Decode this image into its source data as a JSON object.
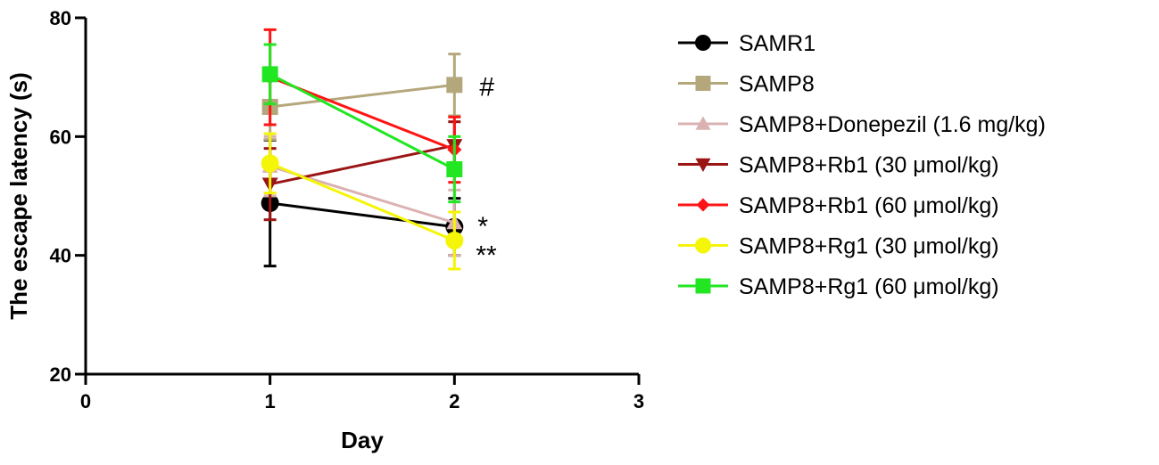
{
  "chart_data": {
    "type": "line",
    "title": "",
    "xlabel": "Day",
    "ylabel": "The escape latency (s)",
    "xlim": [
      0,
      3
    ],
    "ylim": [
      20,
      80
    ],
    "xticks": [
      "0",
      "1",
      "2",
      "3"
    ],
    "yticks": [
      "20",
      "40",
      "60",
      "80"
    ],
    "grid": false,
    "legend_position": "right",
    "series": [
      {
        "name": "SAMR1",
        "color": "#000000",
        "marker": "circle",
        "x": [
          1,
          2
        ],
        "y": [
          48.8,
          44.8
        ],
        "err": [
          10.6,
          4.8
        ]
      },
      {
        "name": "SAMP8",
        "color": "#b5a77c",
        "marker": "square",
        "x": [
          1,
          2
        ],
        "y": [
          65,
          68.7
        ],
        "err": [
          5.5,
          5.2
        ]
      },
      {
        "name": "SAMP8+Donepezil (1.6 mg/kg)",
        "color": "#dbb1b1",
        "marker": "triangle-up",
        "x": [
          1,
          2
        ],
        "y": [
          55,
          45.5
        ],
        "err": [
          5,
          5.5
        ]
      },
      {
        "name": "SAMP8+Rb1 (30 μmol/kg)",
        "color": "#9b1515",
        "marker": "triangle-down",
        "x": [
          1,
          2
        ],
        "y": [
          52,
          58.5
        ],
        "err": [
          6,
          4
        ]
      },
      {
        "name": "SAMP8+Rb1 (60 μmol/kg)",
        "color": "#ff1414",
        "marker": "diamond",
        "x": [
          1,
          2
        ],
        "y": [
          70,
          57.8
        ],
        "err": [
          8,
          5.5
        ]
      },
      {
        "name": "SAMP8+Rg1 (30 μmol/kg)",
        "color": "#f5f507",
        "marker": "circle",
        "x": [
          1,
          2
        ],
        "y": [
          55.5,
          42.5
        ],
        "err": [
          5,
          4.8
        ]
      },
      {
        "name": "SAMP8+Rg1 (60 μmol/kg)",
        "color": "#22e622",
        "marker": "square",
        "x": [
          1,
          2
        ],
        "y": [
          70.5,
          54.5
        ],
        "err": [
          5,
          5.5
        ]
      }
    ],
    "annotations": [
      {
        "text": "#",
        "x": 2,
        "y": 68.7
      },
      {
        "text": "*",
        "x": 2,
        "y": 45.5
      },
      {
        "text": "**",
        "x": 2,
        "y": 41.5
      }
    ]
  }
}
